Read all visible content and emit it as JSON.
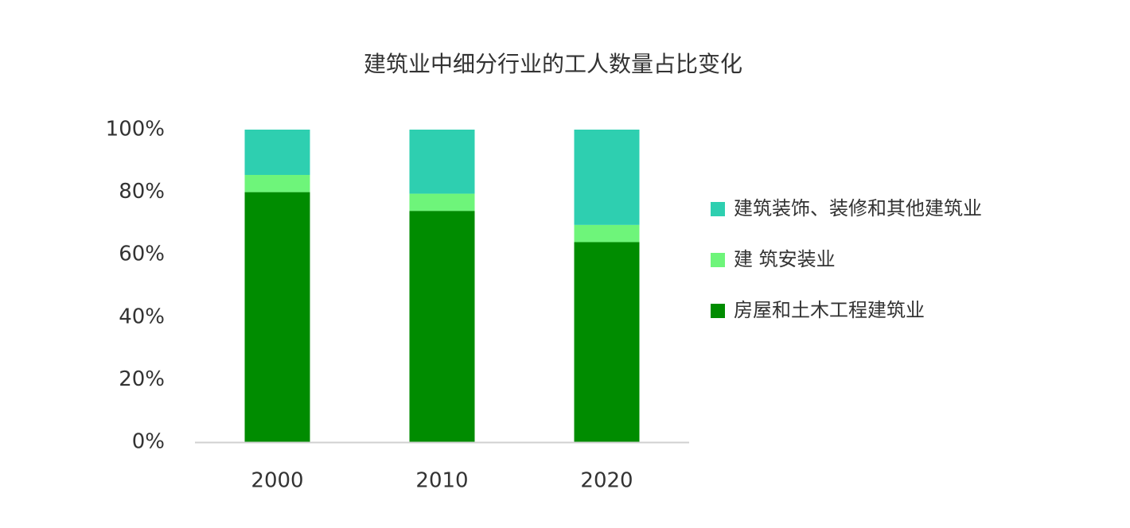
{
  "chart_data": {
    "type": "stacked_bar",
    "title": "建筑业中细分行业的工人数量占比变化",
    "categories": [
      "2000",
      "2010",
      "2020"
    ],
    "series": [
      {
        "name": "房屋和土木工程建筑业",
        "color": "#008c00",
        "values": [
          80,
          74,
          64
        ]
      },
      {
        "name": "建 筑安装业",
        "color": "#6ef57a",
        "values": [
          5.5,
          5.5,
          5.5
        ]
      },
      {
        "name": "建筑装饰、装修和其他建筑业",
        "color": "#2ecfb0",
        "values": [
          14.5,
          20.5,
          30.5
        ]
      }
    ],
    "ylim": [
      0,
      100
    ],
    "yticks": [
      {
        "value": 0,
        "label": "0%"
      },
      {
        "value": 20,
        "label": "20%"
      },
      {
        "value": 40,
        "label": "40%"
      },
      {
        "value": 60,
        "label": "60%"
      },
      {
        "value": 80,
        "label": "80%"
      },
      {
        "value": 100,
        "label": "100%"
      }
    ],
    "legend": "right"
  }
}
